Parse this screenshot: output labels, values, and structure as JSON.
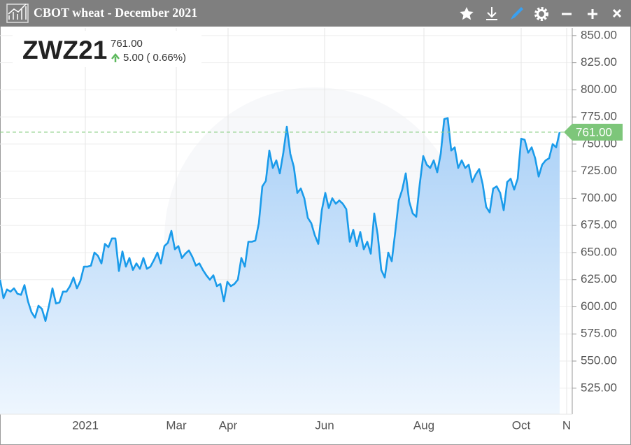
{
  "chart_data": {
    "type": "line",
    "title": "CBOT wheat - December 2021",
    "symbol": "ZWZ21",
    "change": "5.00 ( 0.66%)",
    "last": {
      "value": 761,
      "label": "761.00"
    },
    "color": "#1a9bea",
    "x": [
      0,
      1,
      2,
      3,
      4,
      5,
      6,
      7,
      8,
      9,
      10,
      11,
      12,
      13,
      14,
      15,
      16,
      17,
      18,
      19,
      20,
      21,
      22,
      23,
      24,
      25,
      26,
      27,
      28,
      29,
      30,
      31,
      32,
      33,
      34,
      35,
      36,
      37,
      38,
      39,
      40,
      41,
      42,
      43,
      44,
      45,
      46,
      47,
      48,
      49,
      50,
      51,
      52,
      53,
      54,
      55,
      56,
      57,
      58,
      59,
      60,
      61,
      62,
      63,
      64,
      65,
      66,
      67,
      68,
      69,
      70,
      71,
      72,
      73,
      74,
      75,
      76,
      77,
      78,
      79,
      80,
      81,
      82,
      83,
      84,
      85,
      86,
      87,
      88,
      89,
      90,
      91,
      92,
      93,
      94,
      95,
      96,
      97,
      98,
      99,
      100,
      101,
      102,
      103,
      104,
      105,
      106,
      107,
      108,
      109,
      110,
      111,
      112,
      113,
      114,
      115,
      116,
      117,
      118,
      119,
      120,
      121,
      122,
      123,
      124,
      125,
      126,
      127,
      128,
      129,
      130,
      131,
      132,
      133,
      134,
      135,
      136,
      137,
      138,
      139,
      140,
      141,
      142,
      143,
      144,
      145,
      146,
      147,
      148,
      149,
      150,
      151,
      152,
      153,
      154,
      155,
      156,
      157,
      158,
      159,
      160
    ],
    "values": [
      625,
      608,
      616,
      614,
      617,
      612,
      611,
      620,
      605,
      595,
      590,
      601,
      598,
      587,
      601,
      617,
      603,
      604,
      614,
      614,
      619,
      627,
      617,
      624,
      637,
      637,
      638,
      650,
      647,
      640,
      658,
      655,
      663,
      663,
      633,
      651,
      637,
      645,
      634,
      640,
      635,
      645,
      635,
      637,
      643,
      650,
      640,
      656,
      659,
      670,
      653,
      656,
      645,
      649,
      652,
      646,
      638,
      640,
      634,
      629,
      625,
      629,
      619,
      621,
      605,
      623,
      619,
      621,
      625,
      645,
      637,
      660,
      660,
      661,
      677,
      711,
      716,
      744,
      728,
      735,
      723,
      742,
      766,
      741,
      729,
      705,
      709,
      700,
      682,
      677,
      666,
      658,
      689,
      705,
      691,
      700,
      695,
      698,
      695,
      690,
      660,
      671,
      656,
      669,
      653,
      660,
      649,
      686,
      666,
      634,
      627,
      650,
      642,
      669,
      698,
      708,
      723,
      697,
      686,
      683,
      713,
      739,
      731,
      728,
      735,
      724,
      741,
      773,
      774,
      744,
      747,
      728,
      735,
      728,
      731,
      715,
      722,
      727,
      713,
      692,
      687,
      709,
      711,
      705,
      689,
      715,
      718,
      708,
      718,
      755,
      754,
      742,
      747,
      737,
      720,
      731,
      735,
      737,
      750,
      747,
      761
    ],
    "xlim": [
      0,
      163.6
    ],
    "xticks": [
      {
        "value": 24.4,
        "label": "2021"
      },
      {
        "value": 50.4,
        "label": "Mar"
      },
      {
        "value": 65.2,
        "label": "Apr"
      },
      {
        "value": 92.8,
        "label": "Jun"
      },
      {
        "value": 121.2,
        "label": "Aug"
      },
      {
        "value": 149,
        "label": "Oct"
      },
      {
        "value": 162,
        "label": "N"
      }
    ],
    "ylim": [
      501,
      857
    ],
    "yticks": [
      {
        "value": 525,
        "label": "525.00"
      },
      {
        "value": 550,
        "label": "550.00"
      },
      {
        "value": 575,
        "label": "575.00"
      },
      {
        "value": 600,
        "label": "600.00"
      },
      {
        "value": 625,
        "label": "625.00"
      },
      {
        "value": 650,
        "label": "650.00"
      },
      {
        "value": 675,
        "label": "675.00"
      },
      {
        "value": 700,
        "label": "700.00"
      },
      {
        "value": 725,
        "label": "725.00"
      },
      {
        "value": 750,
        "label": "750.00"
      },
      {
        "value": 775,
        "label": "775.00"
      },
      {
        "value": 800,
        "label": "800.00"
      },
      {
        "value": 825,
        "label": "825.00"
      },
      {
        "value": 850,
        "label": "850.00"
      }
    ],
    "grid": true
  }
}
